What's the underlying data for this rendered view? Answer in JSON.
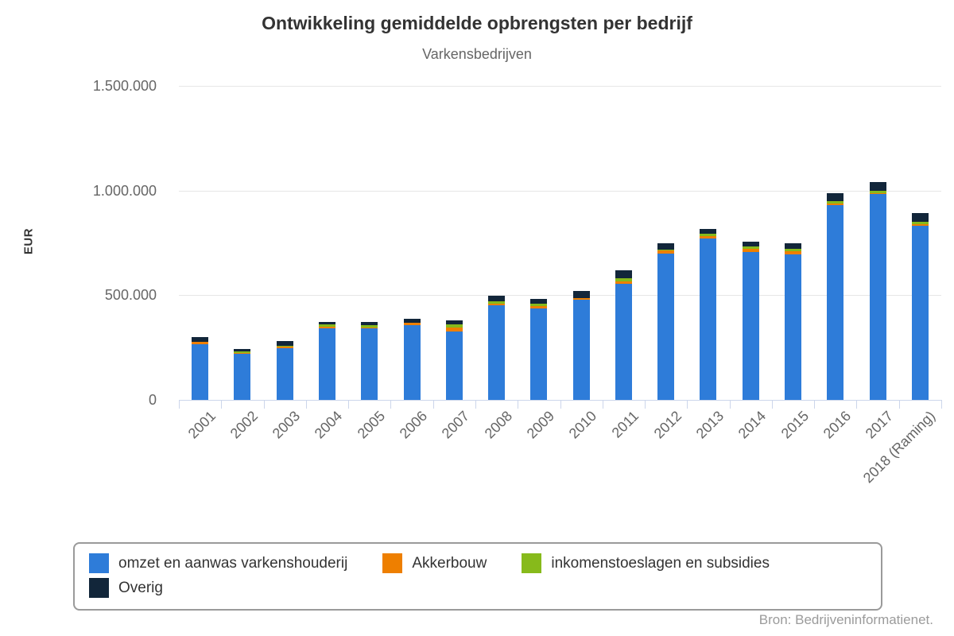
{
  "chart_data": {
    "type": "bar",
    "stacked": true,
    "title": "Ontwikkeling gemiddelde opbrengsten per bedrijf",
    "subtitle": "Varkensbedrijven",
    "ylabel": "EUR",
    "ylim": [
      0,
      1500000
    ],
    "grid": true,
    "legend_position": "bottom",
    "source": "Bron: Bedrijveninformatienet.",
    "yticks": [
      {
        "value": 0,
        "label": "0"
      },
      {
        "value": 500000,
        "label": "500.000"
      },
      {
        "value": 1000000,
        "label": "1.000.000"
      },
      {
        "value": 1500000,
        "label": "1.500.000"
      }
    ],
    "categories": [
      "2001",
      "2002",
      "2003",
      "2004",
      "2005",
      "2006",
      "2007",
      "2008",
      "2009",
      "2010",
      "2011",
      "2012",
      "2013",
      "2014",
      "2015",
      "2016",
      "2017",
      "2018 (Raming)"
    ],
    "series": [
      {
        "name": "omzet en aanwas varkenshouderij",
        "color": "#2e7cd9",
        "values": [
          265000,
          219000,
          246000,
          342000,
          343000,
          357000,
          328000,
          451000,
          438000,
          477000,
          556000,
          698000,
          771000,
          705000,
          695000,
          929000,
          982000,
          830000
        ]
      },
      {
        "name": "Akkerbouw",
        "color": "#ee7f00",
        "values": [
          11000,
          4000,
          10000,
          9000,
          4000,
          11000,
          19000,
          10000,
          10000,
          9000,
          10000,
          16000,
          13000,
          15000,
          15000,
          9000,
          6000,
          10000
        ]
      },
      {
        "name": "inkomenstoeslagen en subsidies",
        "color": "#87ba1b",
        "values": [
          2000,
          10000,
          2000,
          9000,
          10000,
          2000,
          13000,
          10000,
          10000,
          2000,
          15000,
          2000,
          11000,
          13000,
          13000,
          13000,
          10000,
          10000
        ]
      },
      {
        "name": "Overig",
        "color": "#12263a",
        "values": [
          23000,
          12000,
          23000,
          13000,
          15000,
          19000,
          19000,
          28000,
          25000,
          34000,
          38000,
          34000,
          22000,
          23000,
          25000,
          35000,
          44000,
          41000
        ]
      }
    ]
  }
}
